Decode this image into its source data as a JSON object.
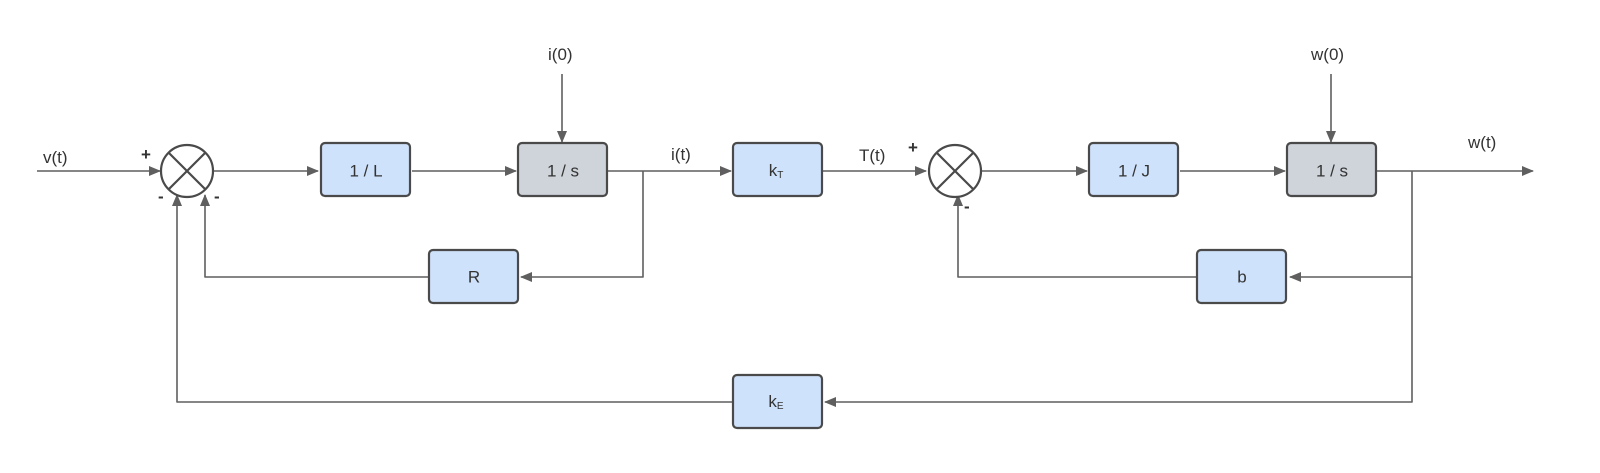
{
  "colors": {
    "block_fill": "#cfe2fb",
    "integrator_fill": "#cfd3da",
    "block_border": "#4a4a4a",
    "wire": "#5f5f5f",
    "text": "#333333"
  },
  "blocks": {
    "inv_l": {
      "label": "1 / L"
    },
    "integrator_current": {
      "label": "1 / s"
    },
    "kt": {
      "main": "k",
      "sub": "T"
    },
    "inv_j": {
      "label": "1 / J"
    },
    "integrator_speed": {
      "label": "1 / s"
    },
    "r": {
      "label": "R"
    },
    "b": {
      "label": "b"
    },
    "ke": {
      "main": "k",
      "sub": "E"
    }
  },
  "signals": {
    "v": "v(t)",
    "i": "i(t)",
    "i0": "i(0)",
    "t": "T(t)",
    "w": "w(t)",
    "w0": "w(0)"
  },
  "summing_junctions": {
    "first": {
      "sign_input": "+",
      "sign_bottom_left": "-",
      "sign_bottom_right": "-"
    },
    "second": {
      "sign_input": "+",
      "sign_bottom": "-"
    }
  }
}
